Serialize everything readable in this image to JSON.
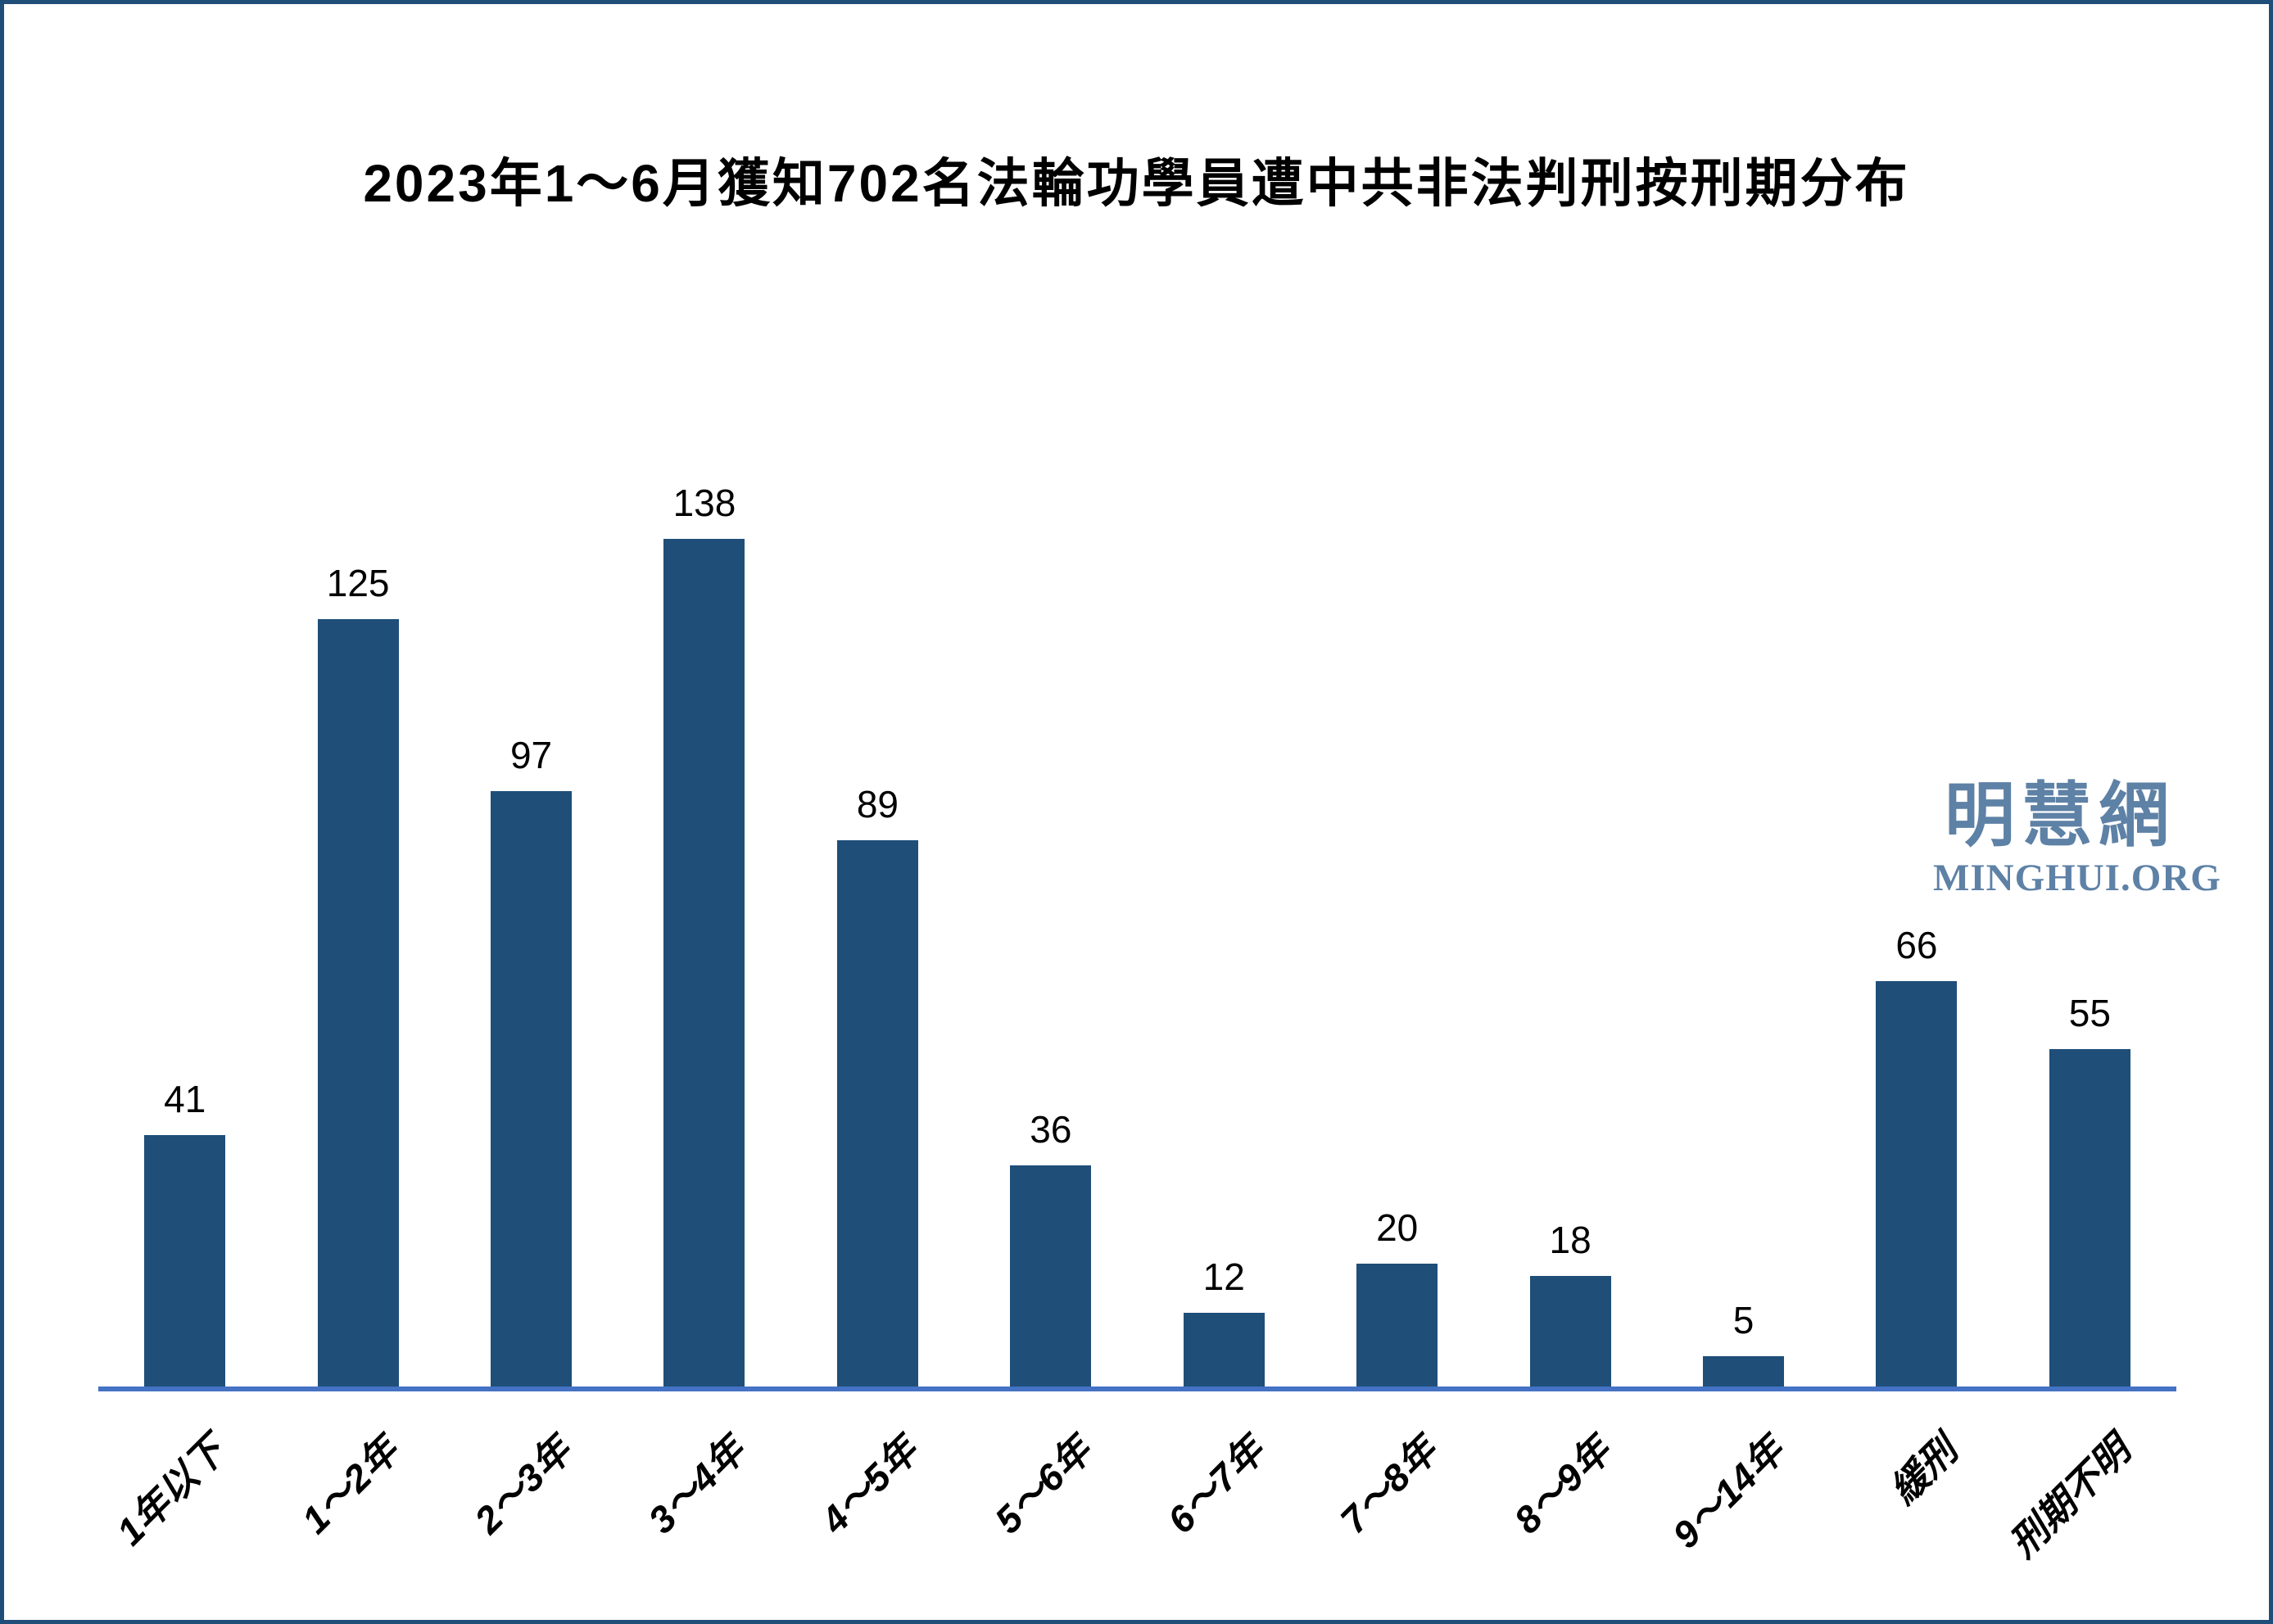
{
  "title": "2023年1～6月獲知702名法輪功學員遭中共非法判刑按刑期分布",
  "watermark": {
    "site_name_cjk": "明慧網",
    "site_name_latin": "MINGHUI.ORG"
  },
  "colors": {
    "bar": "#1F4E79",
    "axis_line": "#4472C4",
    "frame_border": "#1F4E79",
    "watermark": "#5E81A6",
    "text": "#000000"
  },
  "chart_data": {
    "type": "bar",
    "title": "2023年1～6月獲知702名法輪功學員遭中共非法判刑按刑期分布",
    "categories": [
      "1年以下",
      "1～2年",
      "2～3年",
      "3～4年",
      "4～5年",
      "5～6年",
      "6～7年",
      "7～8年",
      "8～9年",
      "9～14年",
      "緩刑",
      "刑期不明"
    ],
    "values": [
      41,
      125,
      97,
      138,
      89,
      36,
      12,
      20,
      18,
      5,
      66,
      55
    ],
    "total_in_title": 702,
    "data_labels": true,
    "xlabel": "",
    "ylabel": "",
    "ylim": [
      0,
      138
    ],
    "grid": false,
    "legend": false,
    "x_tick_rotation_deg": 45
  }
}
